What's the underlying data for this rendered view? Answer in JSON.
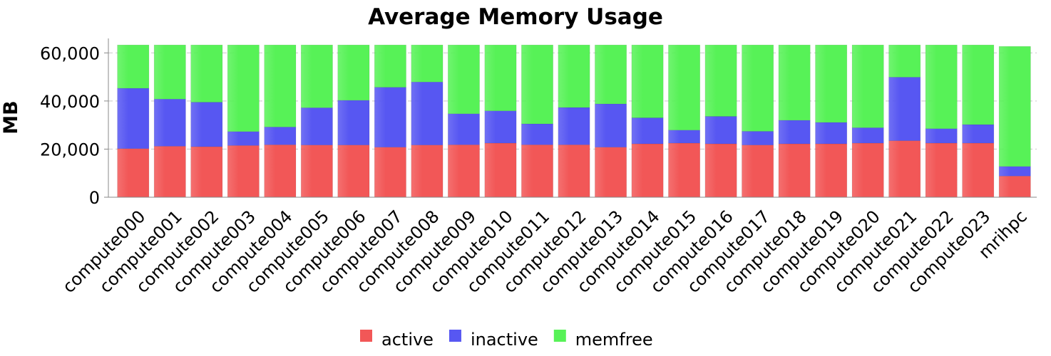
{
  "chart_data": {
    "type": "bar",
    "stacked": true,
    "title": "Average Memory Usage",
    "xlabel": "",
    "ylabel": "MB",
    "ylim": [
      0,
      66000
    ],
    "yticks": [
      0,
      20000,
      40000,
      60000
    ],
    "ytick_labels": [
      "0",
      "20,000",
      "40,000",
      "60,000"
    ],
    "grid": true,
    "legend_position": "bottom",
    "categories": [
      "compute000",
      "compute001",
      "compute002",
      "compute003",
      "compute004",
      "compute005",
      "compute006",
      "compute007",
      "compute008",
      "compute009",
      "compute010",
      "compute011",
      "compute012",
      "compute013",
      "compute014",
      "compute015",
      "compute016",
      "compute017",
      "compute018",
      "compute019",
      "compute020",
      "compute021",
      "compute022",
      "compute023",
      "mrihpc"
    ],
    "series": [
      {
        "name": "active",
        "color": "#f25757",
        "values": [
          20200,
          21200,
          21000,
          21500,
          21800,
          21700,
          21700,
          20800,
          21700,
          21800,
          22500,
          21800,
          21800,
          20800,
          22200,
          22500,
          22200,
          21700,
          22200,
          22200,
          22500,
          23500,
          22500,
          22500,
          8800
        ]
      },
      {
        "name": "inactive",
        "color": "#5757f2",
        "values": [
          25100,
          19600,
          18500,
          5800,
          7400,
          15500,
          18600,
          24900,
          26200,
          12900,
          13400,
          8700,
          15500,
          18000,
          10800,
          5400,
          11400,
          5700,
          9800,
          8900,
          6400,
          26400,
          6000,
          7700,
          4000
        ]
      },
      {
        "name": "memfree",
        "color": "#57f257",
        "values": [
          18000,
          22500,
          23800,
          36000,
          34100,
          26100,
          23000,
          17600,
          15400,
          28600,
          27400,
          32800,
          26000,
          24500,
          30300,
          35400,
          29700,
          35900,
          31300,
          32200,
          34400,
          13400,
          34800,
          33100,
          49900
        ]
      }
    ]
  }
}
